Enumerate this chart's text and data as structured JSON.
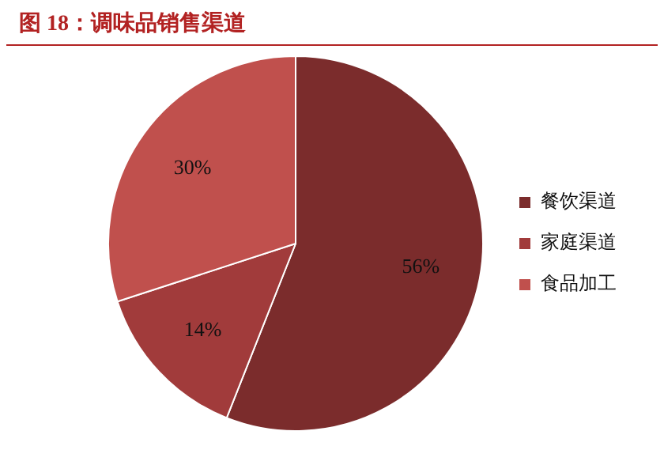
{
  "chart_data": {
    "type": "pie",
    "title": "图 18：调味品销售渠道",
    "categories": [
      "餐饮渠道",
      "家庭渠道",
      "食品加工"
    ],
    "values": [
      56,
      14,
      30
    ],
    "colors": [
      "#7b2c2c",
      "#a13b3b",
      "#c0504d"
    ],
    "value_labels": [
      "56%",
      "14%",
      "30%"
    ],
    "legend": "right"
  }
}
